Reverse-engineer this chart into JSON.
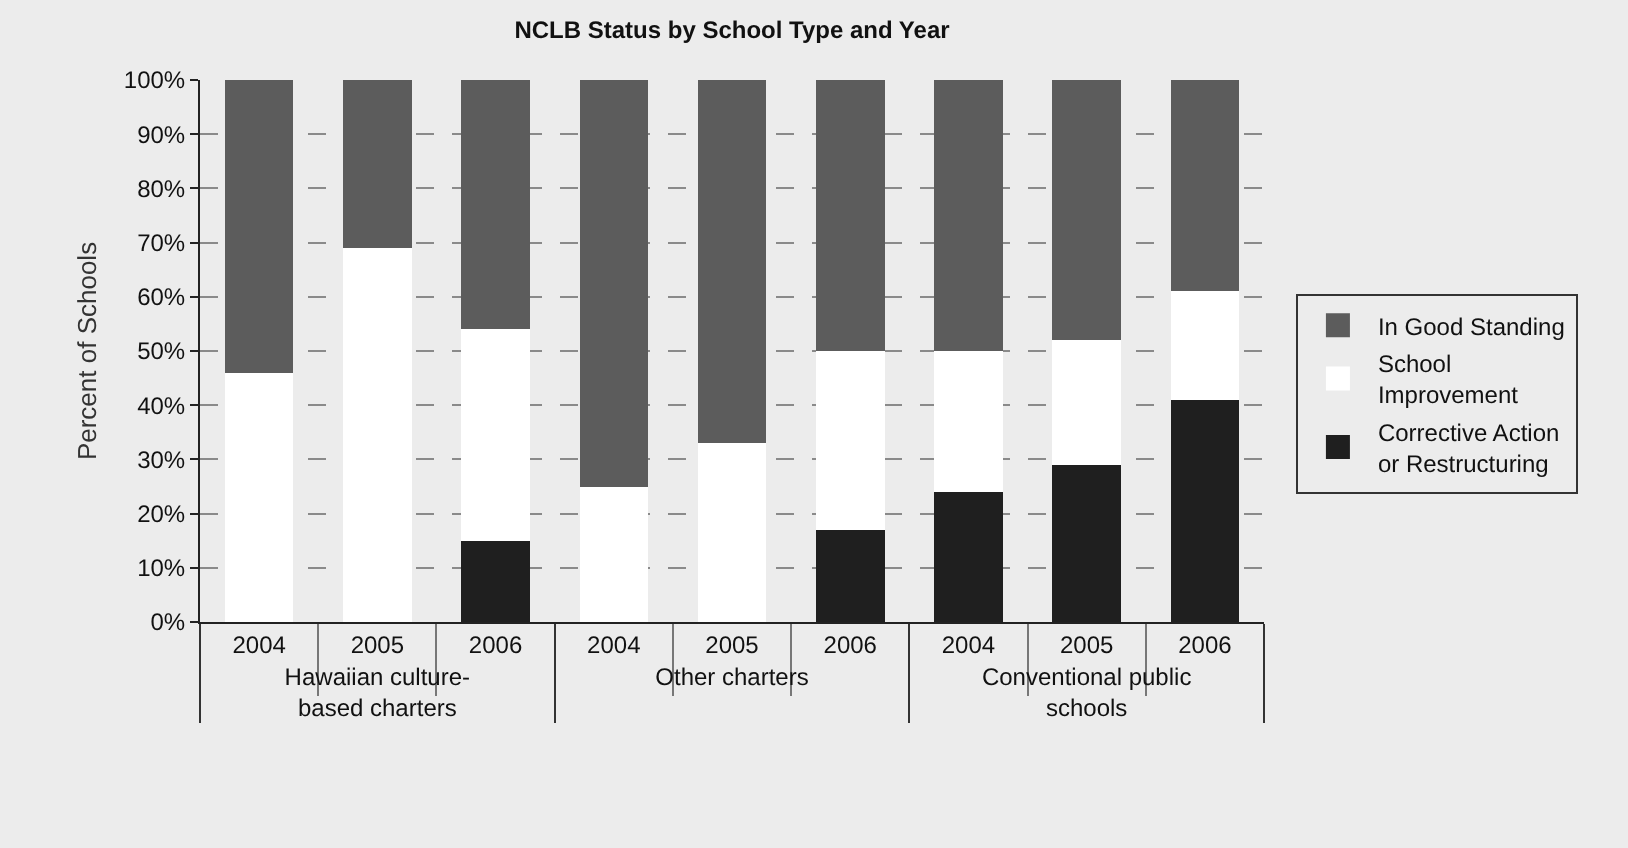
{
  "chart_data": {
    "type": "bar",
    "title": "NCLB Status by School Type and Year",
    "ylabel": "Percent of Schools",
    "categories": [
      "2004",
      "2005",
      "2006",
      "2004",
      "2005",
      "2006",
      "2004",
      "2005",
      "2006"
    ],
    "annotations": [
      "Hawaiian culture-based charters",
      "Other charters",
      "Conventional public schools"
    ],
    "stacked": true,
    "series": [
      {
        "name": "Corrective Action or Restructuring",
        "color": "#1f1f1f",
        "values": [
          0,
          0,
          15,
          0,
          0,
          17,
          24,
          29,
          41
        ]
      },
      {
        "name": "School Improvement",
        "color": "#ffffff",
        "values": [
          46,
          69,
          39,
          25,
          33,
          33,
          26,
          23,
          20
        ]
      },
      {
        "name": "In Good Standing",
        "color": "#5c5c5c",
        "values": [
          54,
          31,
          46,
          75,
          67,
          50,
          50,
          48,
          39
        ]
      }
    ],
    "ylim": [
      0,
      100
    ],
    "yticks": [
      {
        "value": 0,
        "label": "0%"
      },
      {
        "value": 10,
        "label": "10%"
      },
      {
        "value": 20,
        "label": "20%"
      },
      {
        "value": 30,
        "label": "30%"
      },
      {
        "value": 40,
        "label": "40%"
      },
      {
        "value": 50,
        "label": "50%"
      },
      {
        "value": 60,
        "label": "60%"
      },
      {
        "value": 70,
        "label": "70%"
      },
      {
        "value": 80,
        "label": "80%"
      },
      {
        "value": 90,
        "label": "90%"
      },
      {
        "value": 100,
        "label": "100%"
      }
    ],
    "grid": "y",
    "legend": "right"
  }
}
